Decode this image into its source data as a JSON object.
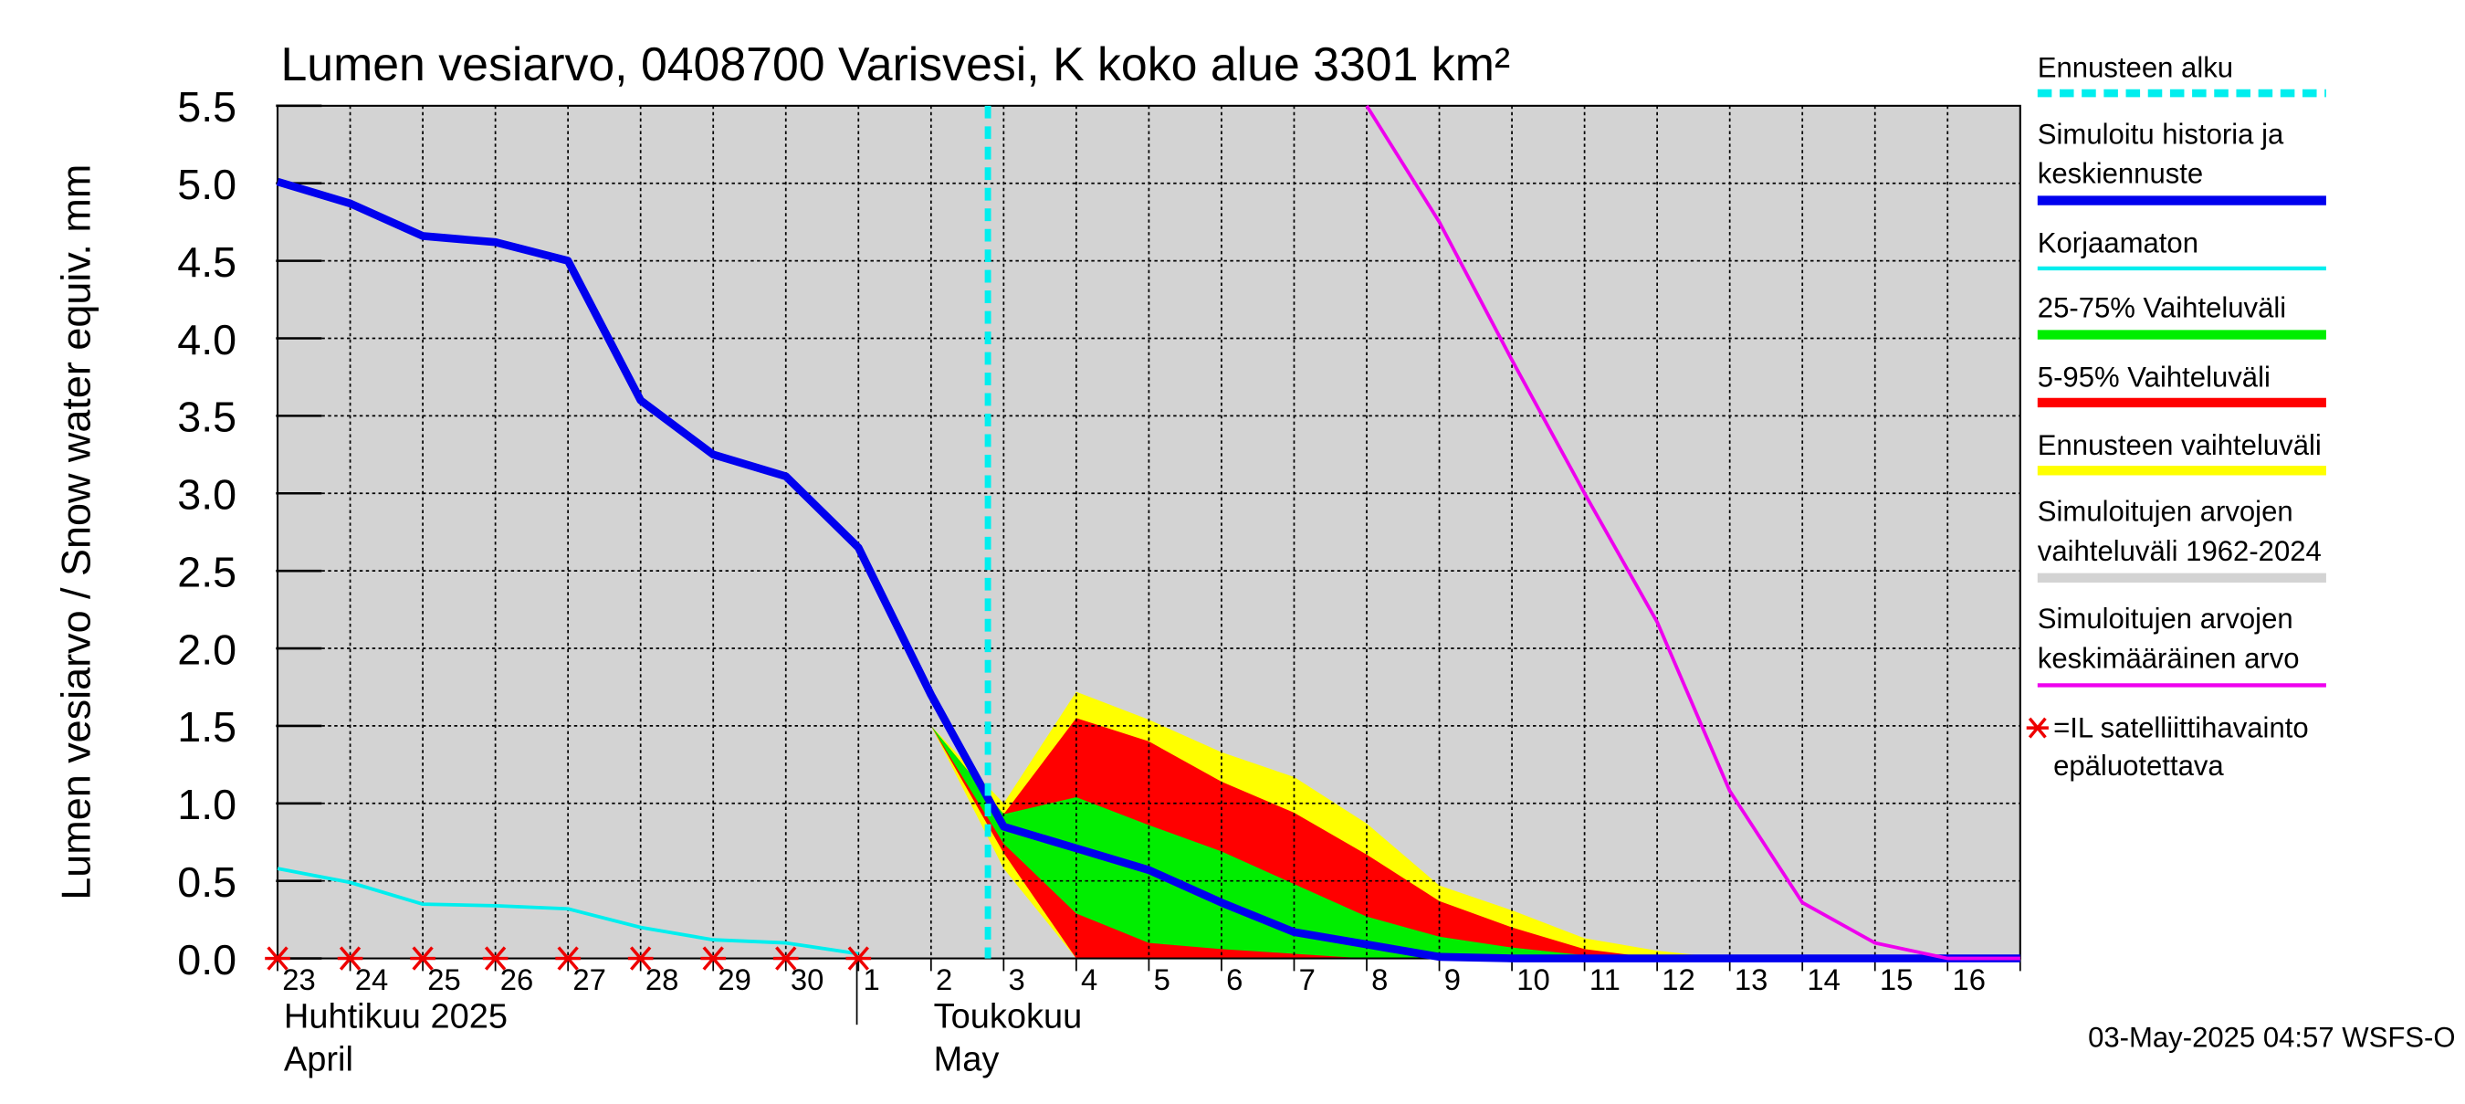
{
  "chart_data": {
    "type": "area",
    "title": "Lumen vesiarvo, 0408700 Varisvesi, K koko alue 3301 km²",
    "ylabel": "Lumen vesiarvo / Snow water equiv.    mm",
    "ylim": [
      0,
      5.5
    ],
    "yticks": [
      "0.0",
      "0.5",
      "1.0",
      "1.5",
      "2.0",
      "2.5",
      "3.0",
      "3.5",
      "4.0",
      "4.5",
      "5.0",
      "5.5"
    ],
    "grid": true,
    "x_day_labels": [
      "23",
      "24",
      "25",
      "26",
      "27",
      "28",
      "29",
      "30",
      "1",
      "2",
      "3",
      "4",
      "5",
      "6",
      "7",
      "8",
      "9",
      "10",
      "11",
      "12",
      "13",
      "14",
      "15",
      "16"
    ],
    "x_dates": [
      "2025-04-23",
      "2025-04-24",
      "2025-04-25",
      "2025-04-26",
      "2025-04-27",
      "2025-04-28",
      "2025-04-29",
      "2025-04-30",
      "2025-05-01",
      "2025-05-02",
      "2025-05-03",
      "2025-05-04",
      "2025-05-05",
      "2025-05-06",
      "2025-05-07",
      "2025-05-08",
      "2025-05-09",
      "2025-05-10",
      "2025-05-11",
      "2025-05-12",
      "2025-05-13",
      "2025-05-14",
      "2025-05-15",
      "2025-05-16",
      "2025-05-17"
    ],
    "month_labels": [
      {
        "fi": "Huhtikuu  2025",
        "en": "April"
      },
      {
        "fi": "Toukokuu",
        "en": "May"
      }
    ],
    "forecast_start": "2025-05-03",
    "series": [
      {
        "name": "Simuloitu historia ja keskiennuste",
        "color": "#0000ee",
        "x": [
          "2025-04-23",
          "2025-04-24",
          "2025-04-25",
          "2025-04-26",
          "2025-04-27",
          "2025-04-28",
          "2025-04-29",
          "2025-04-30",
          "2025-05-01",
          "2025-05-02",
          "2025-05-03",
          "2025-05-04",
          "2025-05-05",
          "2025-05-06",
          "2025-05-07",
          "2025-05-08",
          "2025-05-09",
          "2025-05-10",
          "2025-05-11",
          "2025-05-12",
          "2025-05-13",
          "2025-05-14",
          "2025-05-15",
          "2025-05-16",
          "2025-05-17"
        ],
        "y": [
          5.01,
          4.87,
          4.66,
          4.62,
          4.5,
          3.6,
          3.25,
          3.11,
          2.65,
          1.7,
          0.85,
          0.71,
          0.57,
          0.36,
          0.17,
          0.09,
          0.01,
          0.0,
          0.0,
          0.0,
          0.0,
          0.0,
          0.0,
          0.0,
          0.0
        ]
      },
      {
        "name": "Korjaamaton",
        "color": "#00eeee",
        "x": [
          "2025-04-23",
          "2025-04-24",
          "2025-04-25",
          "2025-04-26",
          "2025-04-27",
          "2025-04-28",
          "2025-04-29",
          "2025-04-30",
          "2025-05-01"
        ],
        "y": [
          0.58,
          0.49,
          0.35,
          0.34,
          0.32,
          0.2,
          0.12,
          0.1,
          0.03
        ]
      },
      {
        "name": "Simuloitujen arvojen keskimääräinen arvo",
        "color": "#ee00ee",
        "x": [
          "2025-05-08",
          "2025-05-09",
          "2025-05-10",
          "2025-05-11",
          "2025-05-12",
          "2025-05-13",
          "2025-05-14",
          "2025-05-15",
          "2025-05-16",
          "2025-05-17"
        ],
        "y": [
          5.5,
          4.75,
          3.86,
          3.0,
          2.17,
          1.08,
          0.36,
          0.1,
          0.0,
          0.0
        ]
      }
    ],
    "bands": [
      {
        "name": "Ennusteen vaihteluväli",
        "color": "#ffff00",
        "x": [
          "2025-05-02",
          "2025-05-03",
          "2025-05-04",
          "2025-05-05",
          "2025-05-06",
          "2025-05-07",
          "2025-05-08",
          "2025-05-09",
          "2025-05-10",
          "2025-05-11",
          "2025-05-12",
          "2025-05-13"
        ],
        "upper": [
          1.5,
          1.0,
          1.72,
          1.54,
          1.33,
          1.17,
          0.87,
          0.47,
          0.31,
          0.13,
          0.05,
          0.0
        ],
        "lower": [
          1.5,
          0.58,
          0.0,
          0.0,
          0.0,
          0.0,
          0.0,
          0.0,
          0.0,
          0.0,
          0.0,
          0.0
        ]
      },
      {
        "name": "5-95% Vaihteluväli",
        "color": "#ff0000",
        "x": [
          "2025-05-02",
          "2025-05-03",
          "2025-05-04",
          "2025-05-05",
          "2025-05-06",
          "2025-05-07",
          "2025-05-08",
          "2025-05-09",
          "2025-05-10",
          "2025-05-11",
          "2025-05-12",
          "2025-05-13"
        ],
        "upper": [
          1.5,
          0.93,
          1.55,
          1.4,
          1.14,
          0.94,
          0.67,
          0.37,
          0.2,
          0.06,
          0.0,
          0.0
        ],
        "lower": [
          1.5,
          0.68,
          0.0,
          0.0,
          0.0,
          0.0,
          0.0,
          0.0,
          0.0,
          0.0,
          0.0,
          0.0
        ]
      },
      {
        "name": "25-75% Vaihteluväli",
        "color": "#00ee00",
        "x": [
          "2025-05-02",
          "2025-05-03",
          "2025-05-04",
          "2025-05-05",
          "2025-05-06",
          "2025-05-07",
          "2025-05-08",
          "2025-05-09",
          "2025-05-10",
          "2025-05-11",
          "2025-05-12"
        ],
        "upper": [
          1.5,
          0.93,
          1.04,
          0.86,
          0.69,
          0.48,
          0.27,
          0.14,
          0.07,
          0.02,
          0.0
        ],
        "lower": [
          1.5,
          0.74,
          0.29,
          0.1,
          0.06,
          0.03,
          0.0,
          0.0,
          0.0,
          0.0,
          0.0
        ]
      }
    ],
    "observations": {
      "name": "=IL satelliittihavainto epäluotettava",
      "color": "#ee0000",
      "x": [
        "2025-04-23",
        "2025-04-24",
        "2025-04-25",
        "2025-04-26",
        "2025-04-27",
        "2025-04-28",
        "2025-04-29",
        "2025-04-30",
        "2025-05-01"
      ],
      "y": [
        0,
        0,
        0,
        0,
        0,
        0,
        0,
        0,
        0
      ]
    },
    "legend": {
      "placement": "right",
      "entries": [
        {
          "lines": [
            "Ennusteen alku"
          ],
          "color": "#00eeee",
          "style": "dashed"
        },
        {
          "lines": [
            "Simuloitu historia ja",
            "keskiennuste"
          ],
          "color": "#0000ee",
          "style": "thick"
        },
        {
          "lines": [
            "Korjaamaton"
          ],
          "color": "#00eeee",
          "style": "thin"
        },
        {
          "lines": [
            "25-75% Vaihteluväli"
          ],
          "color": "#00ee00",
          "style": "band"
        },
        {
          "lines": [
            "5-95% Vaihteluväli"
          ],
          "color": "#ff0000",
          "style": "band"
        },
        {
          "lines": [
            "Ennusteen vaihteluväli"
          ],
          "color": "#ffff00",
          "style": "band"
        },
        {
          "lines": [
            "Simuloitujen arvojen",
            "vaihteluväli 1962-2024"
          ],
          "color": "#d3d3d3",
          "style": "band"
        },
        {
          "lines": [
            "Simuloitujen arvojen",
            "keskimääräinen arvo"
          ],
          "color": "#ee00ee",
          "style": "thin"
        },
        {
          "lines": [
            "=IL satelliittihavainto",
            "epäluotettava"
          ],
          "color": "#ee0000",
          "style": "star"
        }
      ]
    },
    "timestamp": "03-May-2025 04:57 WSFS-O",
    "colors": {
      "plot_background": "#d3d3d3",
      "grid": "#000000"
    }
  }
}
